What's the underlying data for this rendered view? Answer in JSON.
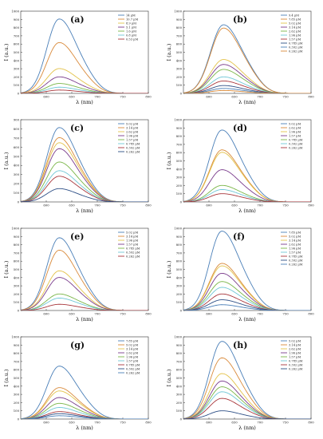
{
  "colors": [
    "#4a7fb8",
    "#d98a3a",
    "#e3c24a",
    "#7a3c8c",
    "#7ab648",
    "#6fc7d6",
    "#a8363b",
    "#2d4f86"
  ],
  "chart_data": [
    {
      "type": "line",
      "panel_label": "(a)",
      "xlabel": "λ (nm)",
      "ylabel": "I (a.u.)",
      "xlim": [
        550,
        800
      ],
      "ylim": [
        0,
        1000
      ],
      "x_ticks": [
        600,
        650,
        700,
        750,
        800
      ],
      "y_ticks": [
        0,
        100,
        200,
        300,
        400,
        500,
        600,
        700,
        800,
        900,
        1000
      ],
      "peak_x": 625,
      "width_left": 24,
      "width_right": 33,
      "grid": false,
      "legend": "top-right",
      "series": [
        {
          "name": "14 μM",
          "peak": 900
        },
        {
          "name": "10.7 μM",
          "peak": 615
        },
        {
          "name": "8.9 μM",
          "peak": 300
        },
        {
          "name": "5.1 μM",
          "peak": 200
        },
        {
          "name": "1.6 μM",
          "peak": 120
        },
        {
          "name": "0.8 μM",
          "peak": 75
        },
        {
          "name": "0.53 μM",
          "peak": 40
        }
      ]
    },
    {
      "type": "line",
      "panel_label": "(b)",
      "xlabel": "λ (nm)",
      "ylabel": "I (a.u.)",
      "xlim": [
        550,
        800
      ],
      "ylim": [
        0,
        1000
      ],
      "x_ticks": [
        600,
        650,
        700,
        750,
        800
      ],
      "y_ticks": [
        0,
        100,
        200,
        300,
        400,
        500,
        600,
        700,
        800,
        900,
        1000
      ],
      "peak_x": 628,
      "width_left": 25,
      "width_right": 34,
      "grid": false,
      "legend": "top-right",
      "series": [
        {
          "name": "9.4 μM",
          "peak": 830
        },
        {
          "name": "7.85 μM",
          "peak": 790
        },
        {
          "name": "5.02 μM",
          "peak": 410
        },
        {
          "name": "3.14 μM",
          "peak": 350
        },
        {
          "name": "2.62 μM",
          "peak": 290
        },
        {
          "name": "1.96 μM",
          "peak": 200
        },
        {
          "name": "1.57 μM",
          "peak": 150
        },
        {
          "name": "0.785 μM",
          "peak": 95
        },
        {
          "name": "0.392 μM",
          "peak": 60
        },
        {
          "name": "0.262 μM",
          "peak": 35
        }
      ]
    },
    {
      "type": "line",
      "panel_label": "(c)",
      "xlabel": "λ (nm)",
      "ylabel": "I (a.u.)",
      "xlim": [
        550,
        800
      ],
      "ylim": [
        0,
        900
      ],
      "x_ticks": [
        600,
        650,
        700,
        750,
        800
      ],
      "y_ticks": [
        0,
        100,
        200,
        300,
        400,
        500,
        600,
        700,
        800,
        900
      ],
      "peak_x": 625,
      "width_left": 24,
      "width_right": 33,
      "grid": false,
      "legend": "top-right",
      "series": [
        {
          "name": "5.02 μM",
          "peak": 810
        },
        {
          "name": "3.14 μM",
          "peak": 700
        },
        {
          "name": "2.62 μM",
          "peak": 645
        },
        {
          "name": "1.96 μM",
          "peak": 580
        },
        {
          "name": "1.57 μM",
          "peak": 435
        },
        {
          "name": "0.785 μM",
          "peak": 340
        },
        {
          "name": "0.392 μM",
          "peak": 280
        },
        {
          "name": "0.262 μM",
          "peak": 145
        }
      ]
    },
    {
      "type": "line",
      "panel_label": "(d)",
      "xlabel": "λ (nm)",
      "ylabel": "I (a.u.)",
      "xlim": [
        550,
        800
      ],
      "ylim": [
        0,
        1000
      ],
      "x_ticks": [
        600,
        650,
        700,
        750,
        800
      ],
      "y_ticks": [
        0,
        100,
        200,
        300,
        400,
        500,
        600,
        700,
        800,
        900,
        1000
      ],
      "peak_x": 625,
      "width_left": 24,
      "width_right": 33,
      "grid": false,
      "legend": "top-right",
      "series": [
        {
          "name": "5.02 μM",
          "peak": 870
        },
        {
          "name": "2.62 μM",
          "peak": 630
        },
        {
          "name": "1.96 μM",
          "peak": 600
        },
        {
          "name": "1.57 μM",
          "peak": 390
        },
        {
          "name": "0.785 μM",
          "peak": 200
        },
        {
          "name": "0.392 μM",
          "peak": 150
        },
        {
          "name": "0.262 μM",
          "peak": 100
        }
      ]
    },
    {
      "type": "line",
      "panel_label": "(e)",
      "xlabel": "λ (nm)",
      "ylabel": "I (a.u.)",
      "xlim": [
        550,
        800
      ],
      "ylim": [
        0,
        1000
      ],
      "x_ticks": [
        600,
        650,
        700,
        750,
        800
      ],
      "y_ticks": [
        0,
        100,
        200,
        300,
        400,
        500,
        600,
        700,
        800,
        900,
        1000
      ],
      "peak_x": 625,
      "width_left": 24,
      "width_right": 33,
      "grid": false,
      "legend": "top-right",
      "series": [
        {
          "name": "5.02 μM",
          "peak": 880
        },
        {
          "name": "3.14 μM",
          "peak": 730
        },
        {
          "name": "1.96 μM",
          "peak": 480
        },
        {
          "name": "1.57 μM",
          "peak": 400
        },
        {
          "name": "0.785 μM",
          "peak": 200
        },
        {
          "name": "0.392 μM",
          "peak": 150
        },
        {
          "name": "0.262 μM",
          "peak": 75
        }
      ]
    },
    {
      "type": "line",
      "panel_label": "(f)",
      "xlabel": "λ (nm)",
      "ylabel": "I (a.u.)",
      "xlim": [
        550,
        800
      ],
      "ylim": [
        0,
        1000
      ],
      "x_ticks": [
        600,
        650,
        700,
        750,
        800
      ],
      "y_ticks": [
        0,
        100,
        200,
        300,
        400,
        500,
        600,
        700,
        800,
        900,
        1000
      ],
      "peak_x": 625,
      "width_left": 24,
      "width_right": 33,
      "grid": false,
      "legend": "top-right",
      "series": [
        {
          "name": "7.85 μM",
          "peak": 960
        },
        {
          "name": "5.02 μM",
          "peak": 570
        },
        {
          "name": "3.14 μM",
          "peak": 540
        },
        {
          "name": "2.62 μM",
          "peak": 450
        },
        {
          "name": "1.96 μM",
          "peak": 350
        },
        {
          "name": "1.57 μM",
          "peak": 280
        },
        {
          "name": "0.785 μM",
          "peak": 200
        },
        {
          "name": "0.392 μM",
          "peak": 130
        },
        {
          "name": "0.262 μM",
          "peak": 70
        }
      ]
    },
    {
      "type": "line",
      "panel_label": "(g)",
      "xlabel": "λ (nm)",
      "ylabel": "I (a.u.)",
      "xlim": [
        550,
        800
      ],
      "ylim": [
        0,
        1000
      ],
      "x_ticks": [
        600,
        650,
        700,
        750,
        800
      ],
      "y_ticks": [
        0,
        100,
        200,
        300,
        400,
        500,
        600,
        700,
        800,
        900,
        1000
      ],
      "peak_x": 625,
      "width_left": 24,
      "width_right": 33,
      "grid": false,
      "legend": "top-right",
      "series": [
        {
          "name": "7.85 μM",
          "peak": 640
        },
        {
          "name": "5.02 μM",
          "peak": 380
        },
        {
          "name": "3.14 μM",
          "peak": 340
        },
        {
          "name": "2.62 μM",
          "peak": 260
        },
        {
          "name": "1.96 μM",
          "peak": 190
        },
        {
          "name": "1.57 μM",
          "peak": 140
        },
        {
          "name": "0.785 μM",
          "peak": 90
        },
        {
          "name": "0.392 μM",
          "peak": 65
        },
        {
          "name": "0.262 μM",
          "peak": 40
        }
      ]
    },
    {
      "type": "line",
      "panel_label": "(h)",
      "xlabel": "λ (nm)",
      "ylabel": "I (a.u.)",
      "xlim": [
        550,
        800
      ],
      "ylim": [
        0,
        1000
      ],
      "x_ticks": [
        600,
        650,
        700,
        750,
        800
      ],
      "y_ticks": [
        0,
        100,
        200,
        300,
        400,
        500,
        600,
        700,
        800,
        900,
        1000
      ],
      "peak_x": 625,
      "width_left": 24,
      "width_right": 33,
      "grid": false,
      "legend": "top-right",
      "series": [
        {
          "name": "5.02 μM",
          "peak": 940
        },
        {
          "name": "3.14 μM",
          "peak": 740
        },
        {
          "name": "2.62 μM",
          "peak": 550
        },
        {
          "name": "1.96 μM",
          "peak": 460
        },
        {
          "name": "1.57 μM",
          "peak": 390
        },
        {
          "name": "0.785 μM",
          "peak": 330
        },
        {
          "name": "0.392 μM",
          "peak": 250
        },
        {
          "name": "0.262 μM",
          "peak": 100
        }
      ]
    }
  ]
}
